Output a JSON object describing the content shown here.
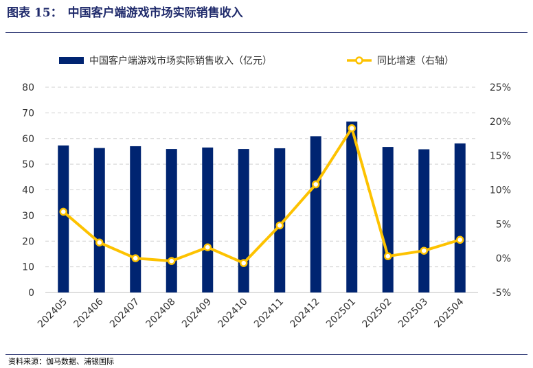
{
  "figure": {
    "label": "图表 15：",
    "title": "中国客户端游戏市场实际销售收入",
    "source": "资料来源：伽马数据、浦银国际"
  },
  "colors": {
    "bar": "#002471",
    "line": "#fdc200",
    "grid": "#d0d0d0",
    "rule": "#1f2a6b"
  },
  "chart_data": {
    "type": "bar",
    "categories": [
      "202405",
      "202406",
      "202407",
      "202408",
      "202409",
      "202410",
      "202411",
      "202412",
      "202501",
      "202502",
      "202503",
      "202504"
    ],
    "series": [
      {
        "name": "中国客户端游戏市场实际销售收入（亿元）",
        "type": "bar",
        "axis": "left",
        "values": [
          57.3,
          56.3,
          57.0,
          55.9,
          56.5,
          55.9,
          56.2,
          60.9,
          66.6,
          56.7,
          55.8,
          58.1
        ]
      },
      {
        "name": "同比增速（右轴）",
        "type": "line",
        "axis": "right",
        "values": [
          6.8,
          2.3,
          0.0,
          -0.4,
          1.6,
          -0.7,
          4.8,
          10.8,
          19.0,
          0.3,
          1.1,
          2.7
        ]
      }
    ],
    "y_left": {
      "min": 0,
      "max": 80,
      "step": 10,
      "ticks": [
        "0",
        "10",
        "20",
        "30",
        "40",
        "50",
        "60",
        "70",
        "80"
      ]
    },
    "y_right": {
      "min": -5,
      "max": 25,
      "step": 5,
      "ticks": [
        "-5%",
        "0%",
        "5%",
        "10%",
        "15%",
        "20%",
        "25%"
      ]
    },
    "grid": true,
    "legend_position": "top"
  }
}
